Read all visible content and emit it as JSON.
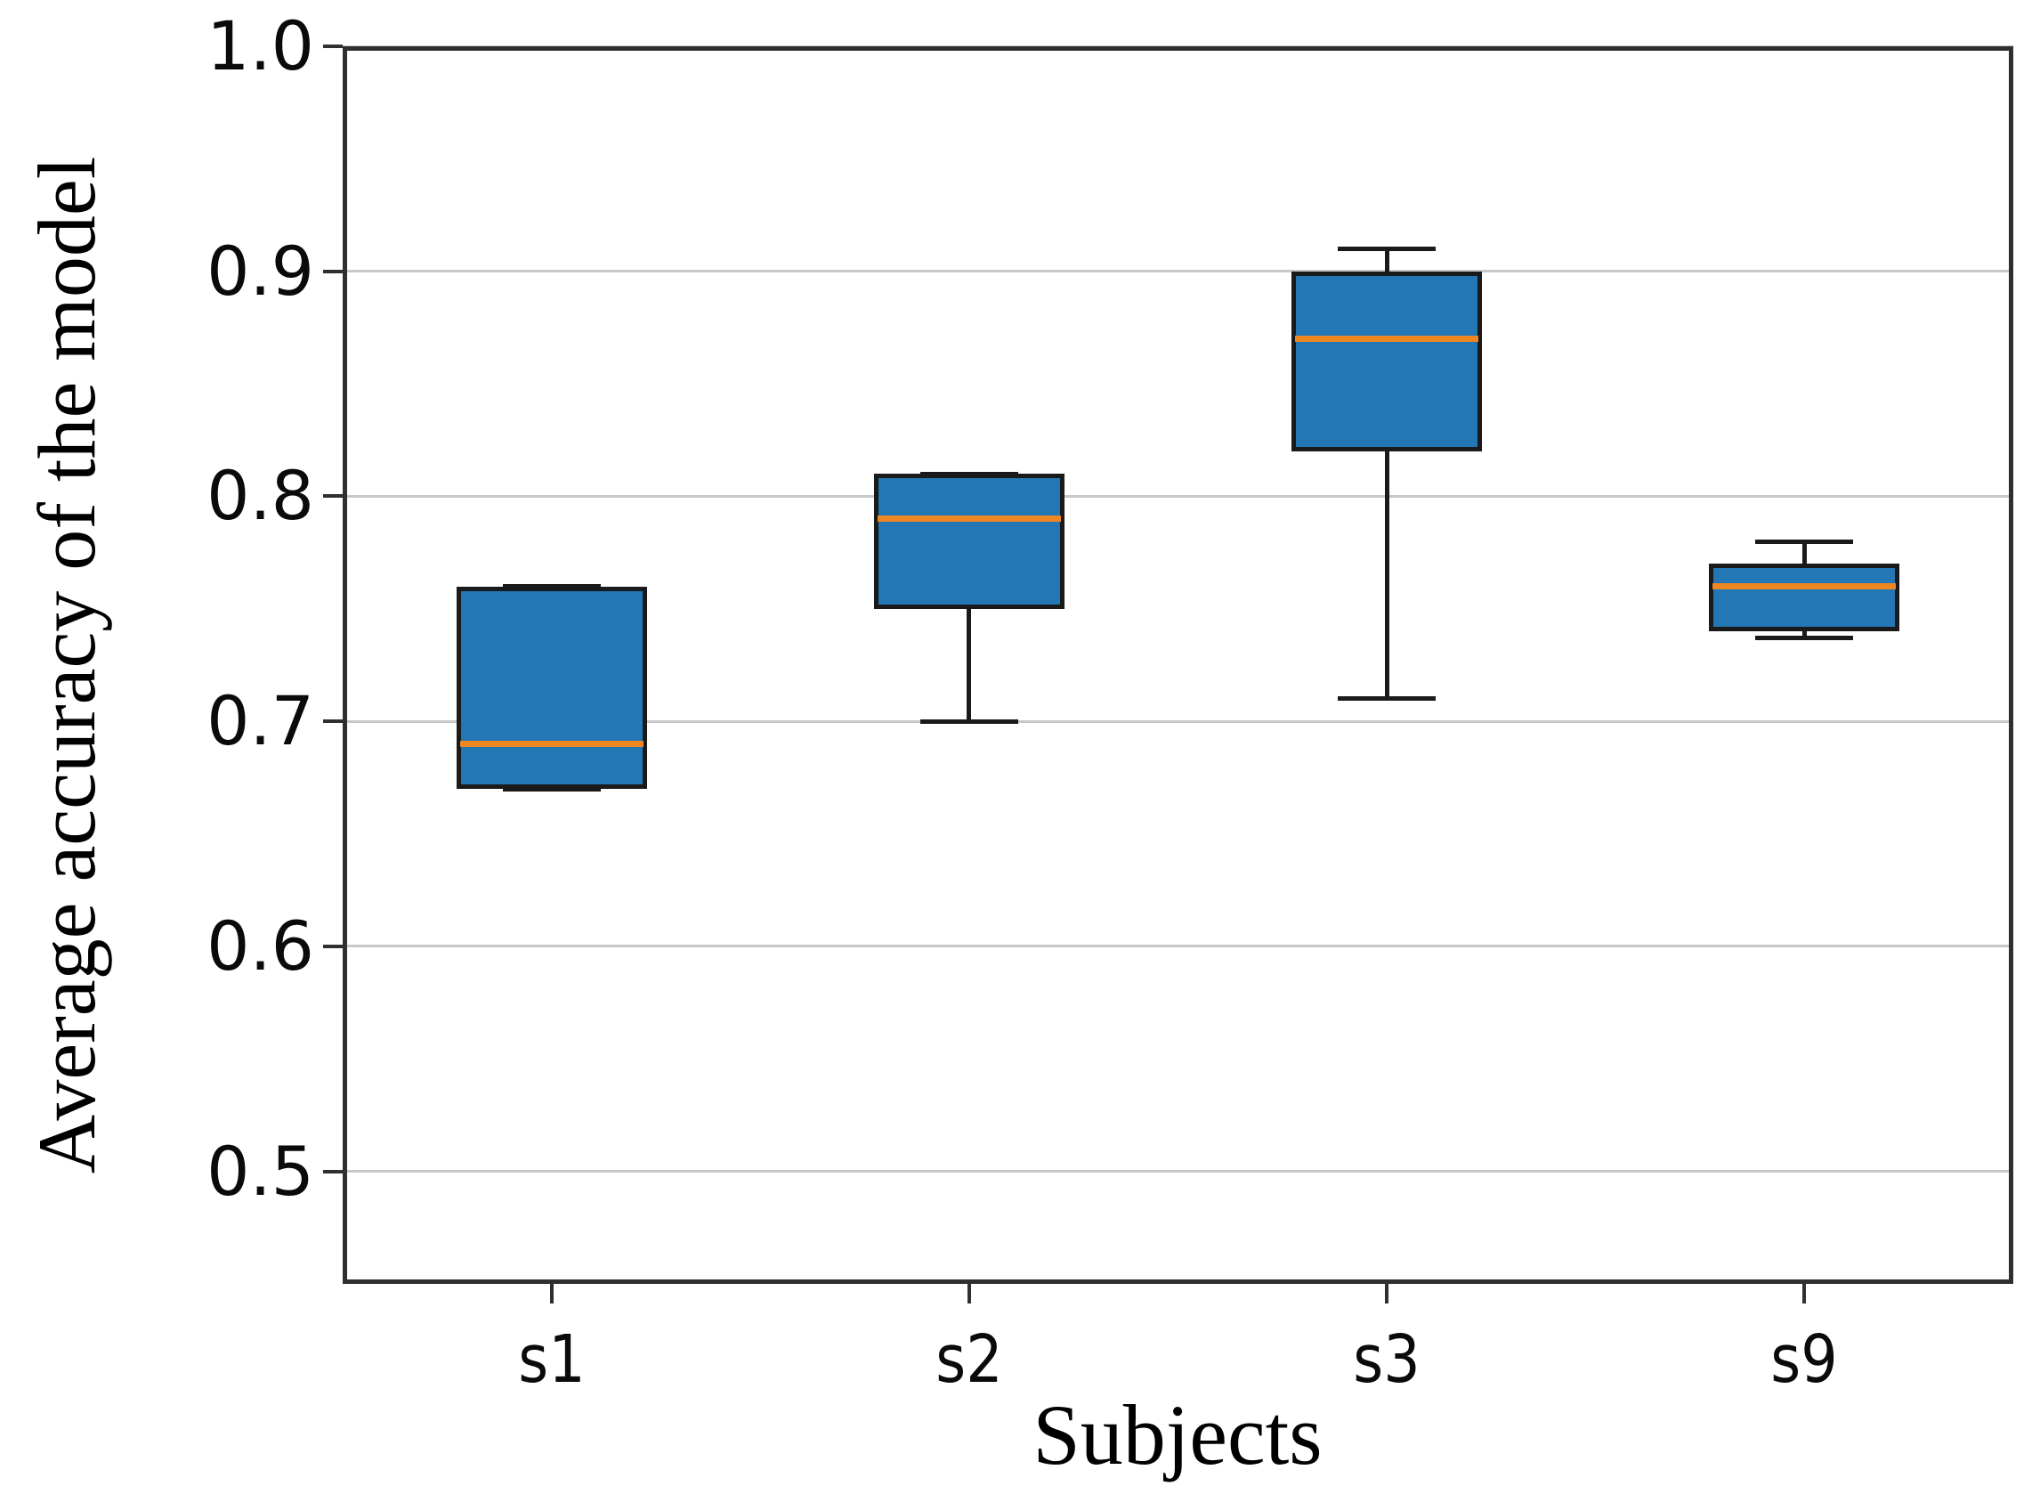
{
  "chart_data": {
    "type": "box",
    "title": "",
    "xlabel": "Subjects",
    "ylabel": "Average accuracy of the model",
    "categories": [
      "s1",
      "s2",
      "s3",
      "s9"
    ],
    "series": [
      {
        "name": "s1",
        "min": 0.67,
        "q1": 0.67,
        "median": 0.69,
        "q3": 0.76,
        "max": 0.76
      },
      {
        "name": "s2",
        "min": 0.7,
        "q1": 0.75,
        "median": 0.79,
        "q3": 0.81,
        "max": 0.81
      },
      {
        "name": "s3",
        "min": 0.71,
        "q1": 0.82,
        "median": 0.87,
        "q3": 0.9,
        "max": 0.91
      },
      {
        "name": "s9",
        "min": 0.737,
        "q1": 0.74,
        "median": 0.76,
        "q3": 0.77,
        "max": 0.78
      }
    ],
    "ylim": [
      0.45,
      1.0
    ],
    "yticks": [
      0.5,
      0.6,
      0.7,
      0.8,
      0.9,
      1.0
    ],
    "ytick_labels": [
      "0.5",
      "0.6",
      "0.7",
      "0.8",
      "0.9",
      "1.0"
    ],
    "grid": true,
    "legend_position": "none",
    "colors": {
      "box_fill": "#2277b4",
      "box_edge": "#1a1a1a",
      "median": "#ee8621",
      "whisker": "#1a1a1a",
      "gridline": "#c8c8c8",
      "frame": "#2f2f2f",
      "text": "#000000",
      "background": "#ffffff"
    }
  }
}
